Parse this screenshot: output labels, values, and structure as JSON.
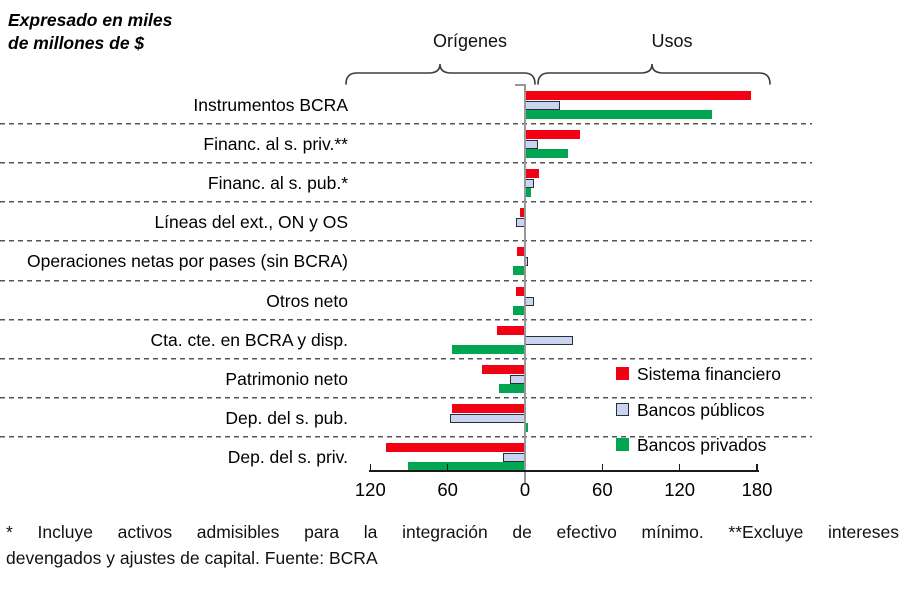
{
  "title": "Expresado en miles\nde millones de $",
  "group_labels": {
    "left": "Orígenes",
    "right": "Usos"
  },
  "chart_data": {
    "type": "bar",
    "orientation": "horizontal",
    "title": "Expresado en miles de millones de $",
    "negative_side_label": "Orígenes",
    "positive_side_label": "Usos",
    "xlim": [
      -120,
      180
    ],
    "grid": "dashed horizontal row separators",
    "legend_position": "right, over rows 8-10",
    "categories": [
      "Instrumentos BCRA",
      "Financ. al s. priv.**",
      "Financ. al s. pub.*",
      "Líneas del ext., ON y OS",
      "Operaciones netas por pases (sin BCRA)",
      "Otros neto",
      "Cta. cte. en BCRA y disp.",
      "Patrimonio neto",
      "Dep. del s. pub.",
      "Dep. del s. priv."
    ],
    "series": [
      {
        "name": "Sistema financiero",
        "color": "#F20013",
        "values": [
          175,
          43,
          11,
          -4,
          -6,
          -7,
          -22,
          -33,
          -57,
          -108
        ]
      },
      {
        "name": "Bancos públicos",
        "color": "#C9D4F0",
        "border_color": "#2B2E38",
        "values": [
          27,
          10,
          7,
          -7,
          2,
          7,
          37,
          -12,
          -58,
          -17
        ]
      },
      {
        "name": "Bancos privados",
        "color": "#00A651",
        "values": [
          145,
          33,
          5,
          -1,
          -9,
          -9,
          -57,
          -20,
          2,
          -91
        ]
      }
    ],
    "ticks": [
      {
        "v": -120,
        "label": "120"
      },
      {
        "v": -60,
        "label": "60"
      },
      {
        "v": 0,
        "label": "0"
      },
      {
        "v": 60,
        "label": "60"
      },
      {
        "v": 120,
        "label": "120"
      },
      {
        "v": 180,
        "label": "180"
      }
    ]
  },
  "footnote": {
    "line1": "* Incluye activos admisibles para la integración de efectivo mínimo. **Excluye intereses",
    "line2": "devengados y ajustes de capital. Fuente: BCRA"
  },
  "colors": {
    "axis": "#1A1A1A",
    "zero_line": "#999999",
    "separator": "#555555",
    "sistema_financiero": "#F20013",
    "bancos_publicos_fill": "#C9D4F0",
    "bancos_publicos_border": "#2B2E38",
    "bancos_privados": "#00A651"
  }
}
